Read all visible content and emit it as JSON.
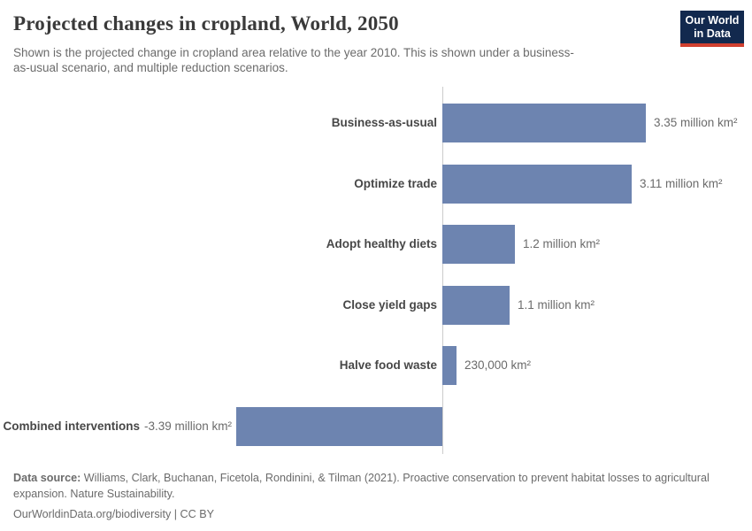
{
  "header": {
    "title": "Projected changes in cropland, World, 2050",
    "subtitle": "Shown is the projected change in cropland area relative to the year 2010. This is shown under a business-as-usual scenario, and multiple reduction scenarios."
  },
  "logo": {
    "line1": "Our World",
    "line2": "in Data"
  },
  "chart_data": {
    "type": "bar",
    "orientation": "horizontal",
    "title": "Projected changes in cropland, World, 2050",
    "categories": [
      "Business-as-usual",
      "Optimize trade",
      "Adopt healthy diets",
      "Close yield gaps",
      "Halve food waste",
      "Combined interventions"
    ],
    "values_million_km2": [
      3.35,
      3.11,
      1.2,
      1.1,
      0.23,
      -3.39
    ],
    "value_labels": [
      "3.35 million km²",
      "3.11 million km²",
      "1.2 million km²",
      "1.1 million km²",
      "230,000 km²",
      "-3.39 million km²"
    ],
    "xlim": [
      -3.39,
      3.35
    ],
    "grid": false,
    "legend": "none",
    "bar_color": "#6d84b0",
    "axis_color": "#cccccc"
  },
  "footer": {
    "source_label": "Data source:",
    "source_text": " Williams, Clark, Buchanan, Ficetola, Rondinini, & Tilman (2021). Proactive conservation to prevent habitat losses to agricultural expansion. Nature Sustainability.",
    "link_text": "OurWorldinData.org/biodiversity | CC BY"
  }
}
